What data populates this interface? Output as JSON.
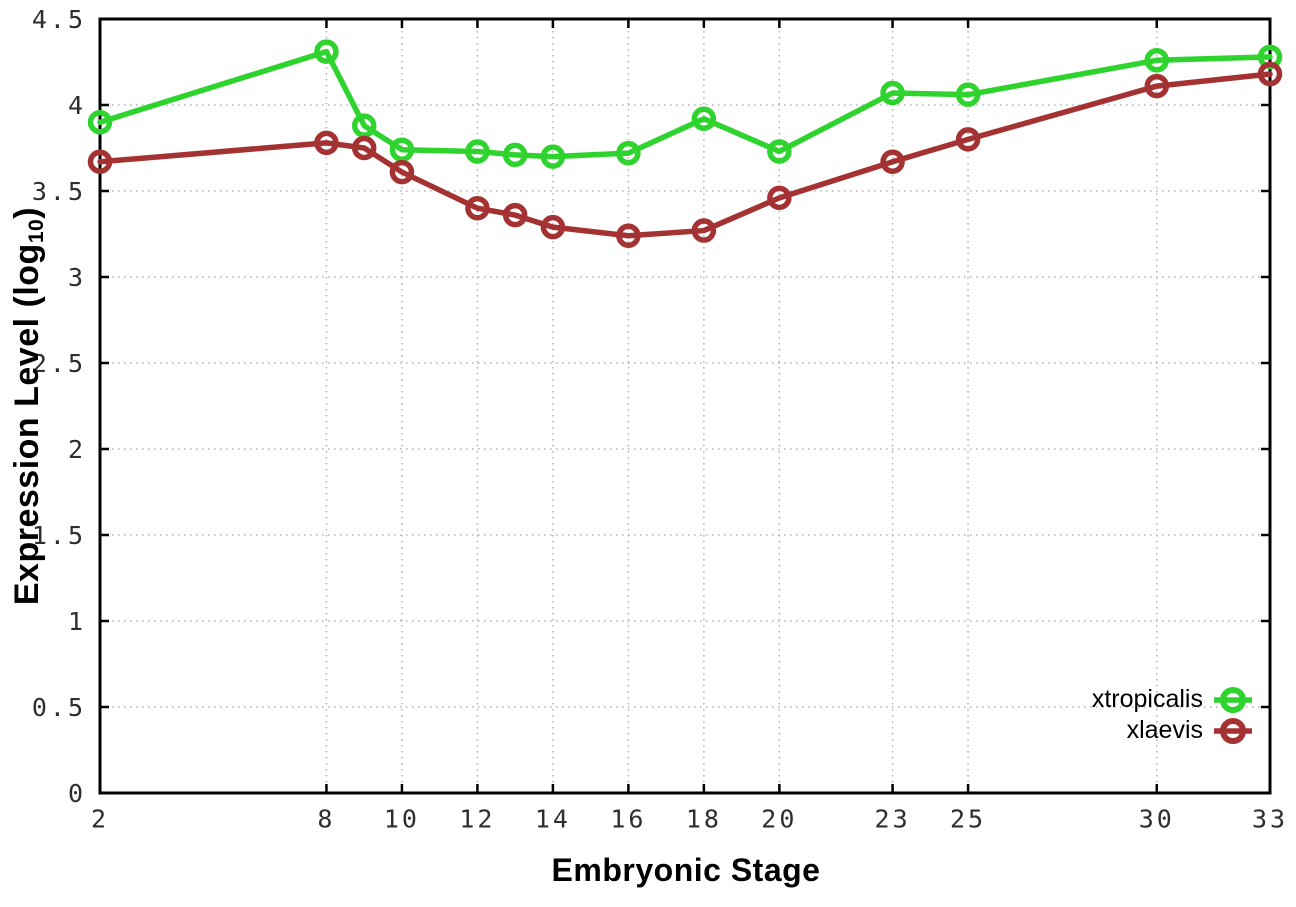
{
  "chart_data": {
    "type": "line",
    "title": "",
    "xlabel": "Embryonic Stage",
    "ylabel": "Expression Level (log10)",
    "ylabel_parts": {
      "pre": "Expression Level (log",
      "sub": "10",
      "post": ")"
    },
    "x": [
      2,
      8,
      9,
      10,
      12,
      13,
      14,
      16,
      18,
      20,
      23,
      25,
      30,
      33
    ],
    "series": [
      {
        "name": "xtropicalis",
        "color": "#2ed32e",
        "marker": "open-circle",
        "values": [
          3.9,
          4.31,
          3.88,
          3.74,
          3.73,
          3.71,
          3.7,
          3.72,
          3.92,
          3.73,
          4.07,
          4.06,
          4.26,
          4.28
        ]
      },
      {
        "name": "xlaevis",
        "color": "#a53232",
        "marker": "open-circle",
        "values": [
          3.67,
          3.78,
          3.75,
          3.61,
          3.4,
          3.36,
          3.29,
          3.24,
          3.27,
          3.46,
          3.67,
          3.8,
          4.11,
          4.18
        ]
      }
    ],
    "xlim": [
      2,
      33
    ],
    "ylim": [
      0,
      4.5
    ],
    "x_ticks": [
      2,
      8,
      10,
      12,
      14,
      16,
      18,
      20,
      23,
      25,
      30,
      33
    ],
    "y_ticks": [
      0,
      0.5,
      1,
      1.5,
      2,
      2.5,
      3,
      3.5,
      4,
      4.5
    ],
    "x_tick_labels": [
      "2",
      "8",
      "10",
      "12",
      "14",
      "16",
      "18",
      "20",
      "23",
      "25",
      "30",
      "33"
    ],
    "y_tick_labels": [
      "0",
      "0.5",
      "1",
      "1.5",
      "2",
      "2.5",
      "3",
      "3.5",
      "4",
      "4.5"
    ],
    "grid": "dotted",
    "legend_position": "inside-bottom-right",
    "legend": [
      "xtropicalis",
      "xlaevis"
    ]
  },
  "style": {
    "background": "#ffffff",
    "axis_color": "#000000",
    "grid_color": "#b3b3b3",
    "tick_label_color": "#2e2e2e",
    "title_color": "#000000"
  }
}
